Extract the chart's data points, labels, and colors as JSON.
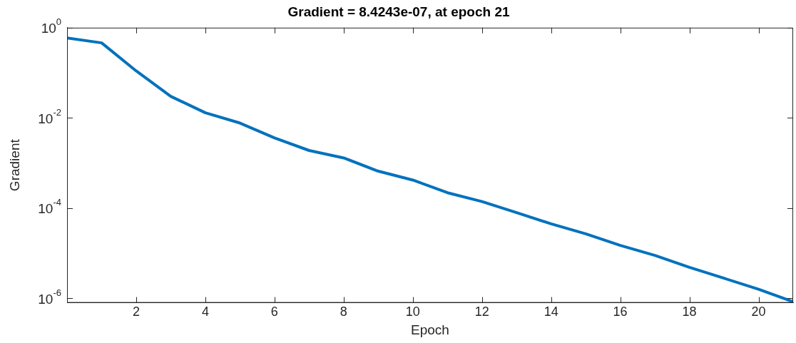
{
  "chart_data": {
    "type": "line",
    "title": "Gradient = 8.4243e-07, at epoch 21",
    "xlabel": "Epoch",
    "ylabel": "Gradient",
    "x": [
      0,
      1,
      2,
      3,
      4,
      5,
      6,
      7,
      8,
      9,
      10,
      11,
      12,
      13,
      14,
      15,
      16,
      17,
      18,
      19,
      20,
      21
    ],
    "series": [
      {
        "color": "#0072bd",
        "values": [
          0.59,
          0.46,
          0.11,
          0.03,
          0.013,
          0.0077,
          0.0036,
          0.0019,
          0.0013,
          0.00066,
          0.00042,
          0.00022,
          0.00014,
          8e-05,
          4.5e-05,
          2.7e-05,
          1.5e-05,
          9e-06,
          4.9e-06,
          2.8e-06,
          1.6e-06,
          8.4243e-07
        ]
      }
    ],
    "log": "y",
    "xlim": [
      0,
      21
    ],
    "xticks": [
      2,
      4,
      6,
      8,
      10,
      12,
      14,
      16,
      18,
      20
    ],
    "ylim": [
      8e-07,
      1
    ],
    "yticks": [
      {
        "value": 1,
        "label": "10$^{0}$"
      },
      {
        "value": 0.01,
        "label": "10$^{-2}$"
      },
      {
        "value": 0.0001,
        "label": "10$^{-4}$"
      },
      {
        "value": 1e-06,
        "label": "10$^{-6}$"
      }
    ],
    "legend": false,
    "marker": "none",
    "line_style": "solid"
  }
}
